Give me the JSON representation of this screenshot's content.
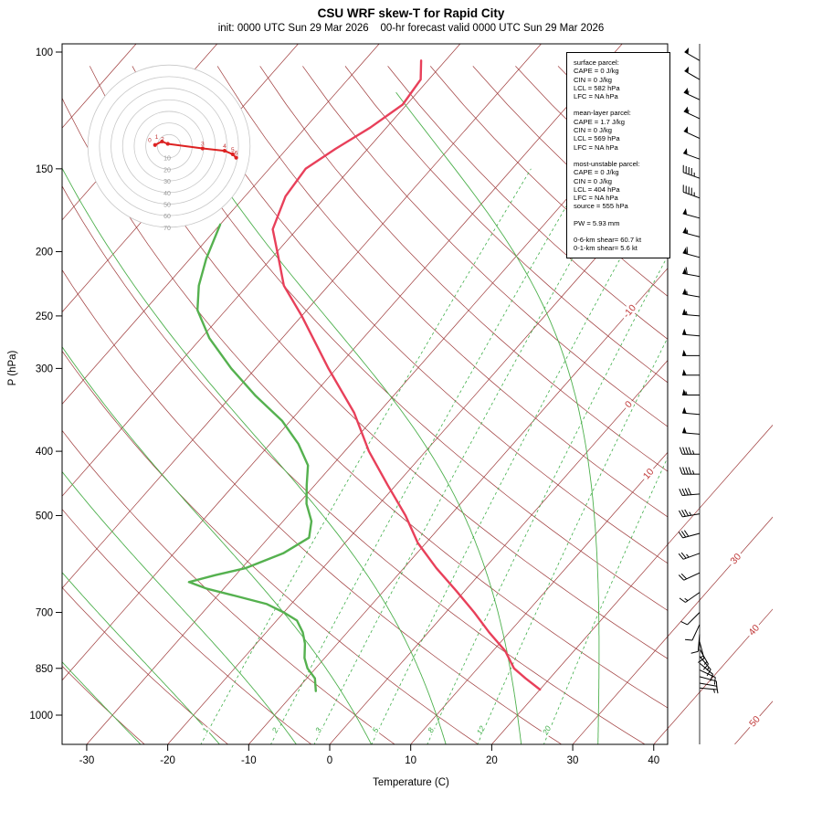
{
  "title": "CSU WRF skew-T for Rapid City",
  "subtitle": "init: 0000 UTC Sun 29 Mar 2026    00-hr forecast valid 0000 UTC Sun 29 Mar 2026",
  "axes": {
    "y_label": "P (hPa)",
    "x_label": "Temperature (C)",
    "pressure_ticks": [
      100,
      150,
      200,
      250,
      300,
      400,
      500,
      700,
      850,
      1000
    ],
    "temperature_ticks": [
      -30,
      -20,
      -10,
      0,
      10,
      20,
      30,
      40
    ]
  },
  "grid": {
    "isotherm_line_labels": [
      -10,
      0,
      10,
      30,
      40,
      50
    ],
    "mixing_ratio_labels": [
      1,
      2,
      3,
      5,
      8,
      12,
      20
    ],
    "colors": {
      "isotherm": "#9e3a3a",
      "dry_adiabat": "#9e3a3a",
      "mixing_ratio": "#3fae49",
      "moist_adiabat": "#4db04d"
    }
  },
  "curves": {
    "temperature_color": "#e8405a",
    "dewpoint_color": "#55b14f"
  },
  "hodograph": {
    "ring_labels_kt": [
      10,
      20,
      30,
      40,
      50,
      60,
      70
    ],
    "point_labels_km": [
      "0",
      "1",
      "2",
      "3",
      "4",
      "5",
      "6"
    ],
    "trace_u_kt": [
      -12,
      -6,
      -1,
      29,
      48,
      55,
      58
    ],
    "trace_v_kt": [
      1,
      4,
      2,
      -2,
      -4,
      -7,
      -10
    ]
  },
  "info_box": {
    "sections": [
      {
        "lines": [
          "surface parcel:",
          "CAPE = 0 J/kg",
          "CIN = 0 J/kg",
          "LCL = 582 hPa",
          "LFC = NA hPa"
        ]
      },
      {
        "lines": [
          "mean-layer parcel:",
          "CAPE = 1.7 J/kg",
          "CIN = 0 J/kg",
          "LCL = 569 hPa",
          "LFC = NA hPa"
        ]
      },
      {
        "lines": [
          "most-unstable parcel:",
          "CAPE = 0 J/kg",
          "CIN = 0 J/kg",
          "LCL = 404 hPa",
          "LFC = NA hPa",
          "source = 555 hPa"
        ]
      },
      {
        "lines": [
          "PW =  5.93 mm"
        ]
      },
      {
        "lines": [
          "0-6-km shear= 60.7 kt",
          "0-1-km shear= 5.6 kt"
        ]
      }
    ]
  },
  "chart_data": {
    "type": "line",
    "title": "CSU WRF skew-T for Rapid City",
    "xlabel": "Temperature (C)",
    "ylabel": "P (hPa)",
    "x_range_C": [
      -35,
      45
    ],
    "pressure_range_hPa": [
      100,
      1050
    ],
    "temperature_profile": {
      "pressure_hPa": [
        915,
        880,
        850,
        800,
        750,
        700,
        650,
        600,
        550,
        500,
        450,
        400,
        350,
        300,
        250,
        225,
        200,
        185,
        165,
        150,
        140,
        130,
        120,
        110,
        103
      ],
      "temperature_C": [
        20,
        17,
        14.5,
        11.5,
        7.5,
        3.5,
        -1,
        -6,
        -11,
        -15.5,
        -21,
        -27,
        -33,
        -41,
        -50,
        -55.5,
        -60,
        -63,
        -65,
        -65.5,
        -64,
        -62,
        -60.5,
        -61,
        -63
      ]
    },
    "dewpoint_profile": {
      "pressure_hPa": [
        920,
        880,
        850,
        820,
        780,
        750,
        720,
        700,
        680,
        660,
        645,
        630,
        615,
        600,
        570,
        540,
        510,
        480,
        450,
        420,
        390,
        360,
        330,
        300,
        270,
        245,
        225,
        205,
        182
      ],
      "dewpoint_C": [
        -7.5,
        -9,
        -11,
        -12.5,
        -14,
        -15.5,
        -17.5,
        -20,
        -23,
        -28,
        -32,
        -35,
        -32.5,
        -29.5,
        -26.5,
        -25,
        -26.5,
        -29,
        -31,
        -33,
        -36.5,
        -41,
        -47,
        -53,
        -59,
        -63.5,
        -66,
        -68,
        -70
      ]
    },
    "wind_barbs": {
      "pressure_hPa": [
        103,
        110,
        118,
        126,
        135,
        145,
        155,
        166,
        178,
        190,
        204,
        218,
        234,
        250,
        268,
        287,
        307,
        329,
        352,
        377,
        404,
        433,
        464,
        497,
        532,
        570,
        610,
        653,
        700,
        730,
        755,
        775,
        795,
        815,
        835,
        855,
        875,
        895,
        910
      ],
      "speed_kt": [
        50,
        50,
        55,
        55,
        50,
        50,
        45,
        45,
        50,
        55,
        60,
        60,
        55,
        55,
        50,
        50,
        50,
        55,
        50,
        50,
        45,
        45,
        40,
        35,
        30,
        25,
        20,
        15,
        10,
        10,
        10,
        15,
        15,
        15,
        10,
        10,
        10,
        8,
        5
      ],
      "dir_deg": [
        300,
        300,
        295,
        295,
        295,
        290,
        290,
        290,
        285,
        285,
        285,
        280,
        280,
        275,
        275,
        270,
        270,
        270,
        275,
        275,
        270,
        270,
        265,
        260,
        255,
        250,
        245,
        235,
        225,
        205,
        185,
        165,
        150,
        140,
        130,
        115,
        105,
        100,
        95
      ]
    },
    "indices": {
      "surface_parcel": {
        "CAPE_J_kg": 0,
        "CIN_J_kg": 0,
        "LCL_hPa": 582,
        "LFC_hPa": "NA"
      },
      "mean_layer_parcel": {
        "CAPE_J_kg": 1.7,
        "CIN_J_kg": 0,
        "LCL_hPa": 569,
        "LFC_hPa": "NA"
      },
      "most_unstable_parcel": {
        "CAPE_J_kg": 0,
        "CIN_J_kg": 0,
        "LCL_hPa": 404,
        "LFC_hPa": "NA",
        "source_hPa": 555
      },
      "PW_mm": 5.93,
      "shear_0_6km_kt": 60.7,
      "shear_0_1km_kt": 5.6
    }
  }
}
